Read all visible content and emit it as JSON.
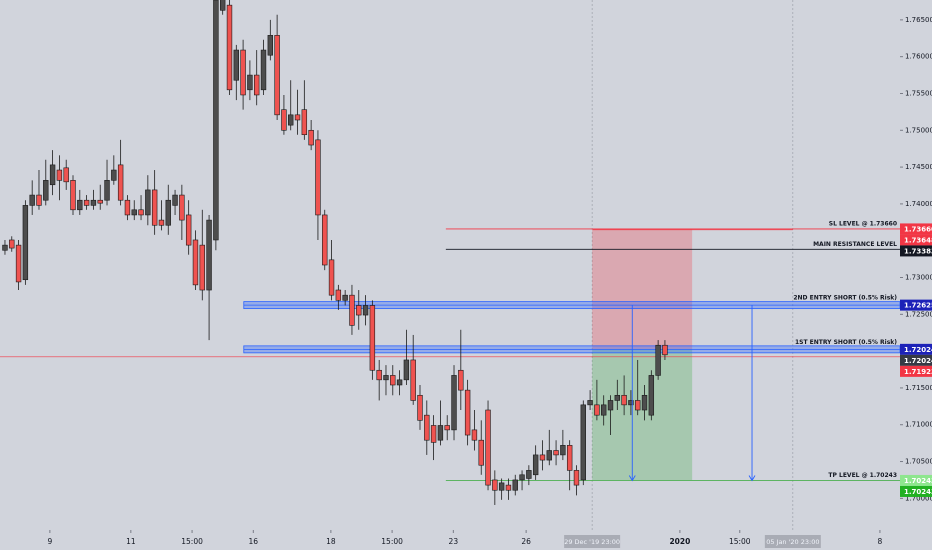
{
  "chart_data": {
    "type": "candlestick",
    "up_color": "#4d4d4d",
    "down_color": "#ef5350",
    "open": [
      1.7337,
      1.7351,
      1.7344,
      1.7297,
      1.7398,
      1.7412,
      1.7405,
      1.7426,
      1.7446,
      1.7449,
      1.7432,
      1.7392,
      1.7405,
      1.7398,
      1.7405,
      1.7405,
      1.7432,
      1.7453,
      1.7405,
      1.7385,
      1.7392,
      1.7385,
      1.7419,
      1.7378,
      1.7371,
      1.7398,
      1.7412,
      1.7385,
      1.7351,
      1.7344,
      1.7283,
      1.7351,
      1.7663,
      1.767,
      1.7568,
      1.7609,
      1.7555,
      1.7575,
      1.7555,
      1.7602,
      1.7629,
      1.7528,
      1.7507,
      1.7521,
      1.7528,
      1.75,
      1.7487,
      1.7385,
      1.7324,
      1.7283,
      1.7269,
      1.7276,
      1.7262,
      1.7249,
      1.7262,
      1.7174,
      1.7161,
      1.7167,
      1.7154,
      1.7161,
      1.7188,
      1.714,
      1.7113,
      1.7099,
      1.7079,
      1.7099,
      1.7093,
      1.7174,
      1.7147,
      1.7093,
      1.7079,
      1.712,
      1.7025,
      1.7011,
      1.7018,
      1.7011,
      1.7025,
      1.7027,
      1.7032,
      1.7059,
      1.7052,
      1.7065,
      1.7059,
      1.7072,
      1.7038,
      1.7025,
      1.7127,
      1.7127,
      1.7113,
      1.712,
      1.7133,
      1.714,
      1.7127,
      1.7133,
      1.712,
      1.7113,
      1.7167,
      1.7208
    ],
    "high": [
      1.7351,
      1.7356,
      1.7351,
      1.7405,
      1.7432,
      1.7446,
      1.746,
      1.7473,
      1.7466,
      1.746,
      1.7439,
      1.7419,
      1.7412,
      1.7419,
      1.7426,
      1.746,
      1.7466,
      1.7487,
      1.7412,
      1.7405,
      1.7412,
      1.7439,
      1.7446,
      1.7405,
      1.7426,
      1.7419,
      1.7426,
      1.7405,
      1.7364,
      1.7392,
      1.7385,
      1.7691,
      1.7691,
      1.7677,
      1.7616,
      1.7623,
      1.7595,
      1.7609,
      1.7623,
      1.765,
      1.7657,
      1.7548,
      1.7568,
      1.7555,
      1.7568,
      1.7514,
      1.75,
      1.7392,
      1.7351,
      1.729,
      1.7283,
      1.729,
      1.7283,
      1.7276,
      1.7269,
      1.7188,
      1.7181,
      1.7181,
      1.7174,
      1.7229,
      1.7222,
      1.7154,
      1.7133,
      1.7113,
      1.7133,
      1.7113,
      1.7181,
      1.7229,
      1.7161,
      1.712,
      1.7106,
      1.7133,
      1.7038,
      1.7027,
      1.7027,
      1.7032,
      1.7038,
      1.7045,
      1.7072,
      1.7079,
      1.7093,
      1.7079,
      1.7093,
      1.7079,
      1.7045,
      1.7133,
      1.7147,
      1.7161,
      1.714,
      1.714,
      1.7161,
      1.7167,
      1.7147,
      1.7188,
      1.7154,
      1.7174,
      1.7215,
      1.7215
    ],
    "low": [
      1.7331,
      1.7335,
      1.7283,
      1.729,
      1.7385,
      1.7392,
      1.7398,
      1.7412,
      1.7405,
      1.7419,
      1.7385,
      1.7385,
      1.7392,
      1.7392,
      1.7392,
      1.7398,
      1.7426,
      1.7398,
      1.7378,
      1.7378,
      1.7378,
      1.7371,
      1.7358,
      1.7364,
      1.7358,
      1.7385,
      1.7351,
      1.7331,
      1.7283,
      1.7269,
      1.7215,
      1.7337,
      1.7657,
      1.7548,
      1.7541,
      1.7528,
      1.7541,
      1.7534,
      1.7548,
      1.7595,
      1.7514,
      1.7494,
      1.75,
      1.7494,
      1.7487,
      1.7473,
      1.7351,
      1.731,
      1.7269,
      1.7256,
      1.7262,
      1.7222,
      1.7229,
      1.7235,
      1.7161,
      1.7133,
      1.714,
      1.714,
      1.714,
      1.7154,
      1.7127,
      1.7093,
      1.7059,
      1.7052,
      1.7072,
      1.7079,
      1.7079,
      1.712,
      1.7072,
      1.7065,
      1.7032,
      1.7011,
      1.6991,
      1.6998,
      1.6998,
      1.7004,
      1.7011,
      1.7018,
      1.7025,
      1.7038,
      1.7045,
      1.7045,
      1.7052,
      1.7011,
      1.7004,
      1.7018,
      1.712,
      1.7106,
      1.7099,
      1.7086,
      1.712,
      1.7113,
      1.7113,
      1.7113,
      1.7106,
      1.7106,
      1.7161,
      1.7188
    ],
    "close": [
      1.7344,
      1.734,
      1.7294,
      1.7398,
      1.7412,
      1.7398,
      1.7432,
      1.7453,
      1.7432,
      1.743,
      1.7392,
      1.7405,
      1.7398,
      1.7405,
      1.7401,
      1.7432,
      1.7446,
      1.7405,
      1.7385,
      1.7392,
      1.7385,
      1.7419,
      1.7371,
      1.7371,
      1.7405,
      1.7412,
      1.7378,
      1.7344,
      1.729,
      1.7283,
      1.7378,
      1.7677,
      1.7684,
      1.7555,
      1.7609,
      1.7548,
      1.7575,
      1.7548,
      1.7609,
      1.7629,
      1.7521,
      1.75,
      1.7521,
      1.7514,
      1.7494,
      1.748,
      1.7385,
      1.7317,
      1.7276,
      1.7269,
      1.7276,
      1.7235,
      1.7249,
      1.7262,
      1.7174,
      1.7161,
      1.7167,
      1.7154,
      1.7161,
      1.7188,
      1.7133,
      1.7106,
      1.7079,
      1.7076,
      1.7099,
      1.7093,
      1.7167,
      1.7147,
      1.7086,
      1.7079,
      1.7045,
      1.7018,
      1.7011,
      1.7021,
      1.7011,
      1.7025,
      1.7032,
      1.7038,
      1.7059,
      1.7052,
      1.7065,
      1.7059,
      1.7072,
      1.7038,
      1.7018,
      1.7127,
      1.7133,
      1.7113,
      1.7127,
      1.7133,
      1.714,
      1.7127,
      1.7133,
      1.712,
      1.714,
      1.7167,
      1.7208,
      1.7195
    ],
    "xlim": [
      -0.73,
      131.55
    ],
    "ylim": [
      1.6957,
      1.7677
    ],
    "xticks": [
      {
        "value": 6.6,
        "label": "9"
      },
      {
        "value": 18.5,
        "label": "11"
      },
      {
        "value": 27.5,
        "label": "15:00"
      },
      {
        "value": 36.5,
        "label": "16"
      },
      {
        "value": 47.9,
        "label": "18"
      },
      {
        "value": 56.9,
        "label": "15:00"
      },
      {
        "value": 65.9,
        "label": "23"
      },
      {
        "value": 76.6,
        "label": "26"
      },
      {
        "value": 99.2,
        "label": "2020"
      },
      {
        "value": 108.0,
        "label": "15:00"
      },
      {
        "value": 128.6,
        "label": "8"
      }
    ],
    "yticks": [
      {
        "value": 1.765,
        "label": "1.76500"
      },
      {
        "value": 1.76,
        "label": "1.76000"
      },
      {
        "value": 1.755,
        "label": "1.75500"
      },
      {
        "value": 1.75,
        "label": "1.75000"
      },
      {
        "value": 1.745,
        "label": "1.74500"
      },
      {
        "value": 1.74,
        "label": "1.74000"
      },
      {
        "value": 1.73,
        "label": "1.73000"
      },
      {
        "value": 1.725,
        "label": "1.72500"
      },
      {
        "value": 1.715,
        "label": "1.71500"
      },
      {
        "value": 1.71,
        "label": "1.71000"
      },
      {
        "value": 1.705,
        "label": "1.70500"
      },
      {
        "value": 1.7,
        "label": "1.70000"
      }
    ],
    "crosshairs": [
      {
        "value": 86.3,
        "label": "29 Dec '19  23:00"
      },
      {
        "value": 115.8,
        "label": "05 Jan '20  23:00"
      }
    ],
    "position": {
      "x": [
        86.3,
        101.0
      ],
      "stop": 1.7366,
      "entry": 1.72024,
      "target": 1.70243
    },
    "levels": [
      {
        "label": "SL LEVEL @ 1.73660",
        "value": 1.7366,
        "color": "#f23645",
        "style": "line",
        "x_start": 64.8
      },
      {
        "label": "MAIN RESISTANCE LEVEL",
        "value": 1.73383,
        "color": "#131722",
        "style": "line",
        "x_start": 64.8
      },
      {
        "label": "2ND ENTRY SHORT (0.5% Risk)",
        "value": 1.72625,
        "color": "#2962ff",
        "style": "band",
        "x_start": 35.1
      },
      {
        "label": "1ST ENTRY SHORT (0.5% Risk)",
        "value": 1.72024,
        "color": "#2962ff",
        "style": "band",
        "x_start": 35.1
      },
      {
        "label": "TP LEVEL @ 1.70243",
        "value": 1.70243,
        "color": "#4caf50",
        "style": "line",
        "x_start": 64.8
      }
    ],
    "lines": [
      {
        "value": 1.73648,
        "color": "#f23645",
        "x_start": 86.4,
        "x_end": 115.8
      },
      {
        "value": 1.71923,
        "color": "#f23645"
      }
    ],
    "arrows": [
      {
        "x": 92.2,
        "from": 1.72625,
        "to": 1.70243,
        "color": "#2962ff"
      },
      {
        "x": 109.8,
        "from": 1.72625,
        "to": 1.70243,
        "color": "#2962ff"
      }
    ],
    "price_tags": [
      {
        "value": 1.7366,
        "label": "1.73660",
        "color": "#f23645"
      },
      {
        "value": 1.73648,
        "label": "1.73648",
        "color": "#f23645"
      },
      {
        "value": 1.73383,
        "label": "1.73383",
        "color": "#131722"
      },
      {
        "value": 1.72625,
        "label": "1.72625",
        "color": "#1c22b8"
      },
      {
        "value": 1.72024,
        "label": "1.72024",
        "color": "#1c22b8"
      },
      {
        "value": 1.72024,
        "label": "1.72024",
        "color": "#363a45"
      },
      {
        "value": 1.71923,
        "label": "1.71923",
        "color": "#f23645"
      },
      {
        "value": 1.70243,
        "label": "1.70243",
        "color": "#8ee68e"
      },
      {
        "value": 1.70243,
        "label": "1.70243",
        "color": "#22b022"
      }
    ]
  }
}
